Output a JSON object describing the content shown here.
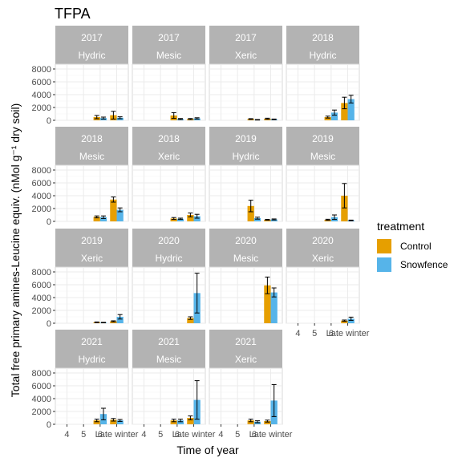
{
  "chart_data": {
    "type": "bar",
    "title": "TFPA",
    "xlabel": "Time of year",
    "ylabel": "Total free primary amines-Leucine equiv. (nMol g⁻¹ dry soil)",
    "categories": [
      "4",
      "5",
      "6",
      "Late winter"
    ],
    "ylim": [
      0,
      8000
    ],
    "yticks": [
      0,
      2000,
      4000,
      6000,
      8000
    ],
    "legend": {
      "title": "treatment",
      "position": "right",
      "entries": [
        {
          "name": "Control",
          "color": "#E69F00"
        },
        {
          "name": "Snowfence",
          "color": "#56B4E9"
        }
      ]
    },
    "panel_strip_color": "#B3B3B3",
    "panels": [
      {
        "year": "2017",
        "site": "Hydric",
        "control": [
          null,
          null,
          500,
          800
        ],
        "snowfence": [
          null,
          null,
          350,
          400
        ],
        "control_err": [
          null,
          null,
          250,
          600
        ],
        "snowfence_err": [
          null,
          null,
          150,
          150
        ],
        "show_xaxis": false
      },
      {
        "year": "2017",
        "site": "Mesic",
        "control": [
          null,
          null,
          750,
          200
        ],
        "snowfence": [
          null,
          null,
          200,
          300
        ],
        "control_err": [
          null,
          null,
          450,
          80
        ],
        "snowfence_err": [
          null,
          null,
          80,
          100
        ],
        "show_xaxis": false
      },
      {
        "year": "2017",
        "site": "Xeric",
        "control": [
          null,
          null,
          200,
          250
        ],
        "snowfence": [
          null,
          null,
          80,
          150
        ],
        "control_err": [
          null,
          null,
          60,
          80
        ],
        "snowfence_err": [
          null,
          null,
          40,
          50
        ],
        "show_xaxis": false
      },
      {
        "year": "2018",
        "site": "Hydric",
        "control": [
          null,
          null,
          500,
          2700
        ],
        "snowfence": [
          null,
          null,
          1200,
          3300
        ],
        "control_err": [
          null,
          null,
          150,
          900
        ],
        "snowfence_err": [
          null,
          null,
          400,
          600
        ],
        "show_xaxis": false
      },
      {
        "year": "2018",
        "site": "Mesic",
        "control": [
          null,
          null,
          700,
          3400
        ],
        "snowfence": [
          null,
          null,
          650,
          1800
        ],
        "control_err": [
          null,
          null,
          150,
          400
        ],
        "snowfence_err": [
          null,
          null,
          200,
          300
        ],
        "show_xaxis": false
      },
      {
        "year": "2018",
        "site": "Xeric",
        "control": [
          null,
          null,
          450,
          1000
        ],
        "snowfence": [
          null,
          null,
          400,
          800
        ],
        "control_err": [
          null,
          null,
          150,
          300
        ],
        "snowfence_err": [
          null,
          null,
          100,
          300
        ],
        "show_xaxis": false
      },
      {
        "year": "2019",
        "site": "Hydric",
        "control": [
          null,
          null,
          2400,
          250
        ],
        "snowfence": [
          null,
          null,
          500,
          300
        ],
        "control_err": [
          null,
          null,
          900,
          60
        ],
        "snowfence_err": [
          null,
          null,
          150,
          80
        ],
        "show_xaxis": false
      },
      {
        "year": "2019",
        "site": "Mesic",
        "control": [
          null,
          null,
          250,
          4000
        ],
        "snowfence": [
          null,
          null,
          650,
          150
        ],
        "control_err": [
          null,
          null,
          80,
          1900
        ],
        "snowfence_err": [
          null,
          null,
          350,
          50
        ],
        "show_xaxis": false
      },
      {
        "year": "2019",
        "site": "Xeric",
        "control": [
          null,
          null,
          150,
          300
        ],
        "snowfence": [
          null,
          null,
          100,
          1000
        ],
        "control_err": [
          null,
          null,
          50,
          80
        ],
        "snowfence_err": [
          null,
          null,
          40,
          350
        ],
        "show_xaxis": false
      },
      {
        "year": "2020",
        "site": "Hydric",
        "control": [
          null,
          null,
          null,
          800
        ],
        "snowfence": [
          null,
          null,
          null,
          4700
        ],
        "control_err": [
          null,
          null,
          null,
          200
        ],
        "snowfence_err": [
          null,
          null,
          null,
          3100
        ],
        "show_xaxis": false
      },
      {
        "year": "2020",
        "site": "Mesic",
        "control": [
          null,
          null,
          null,
          5900
        ],
        "snowfence": [
          null,
          null,
          null,
          4800
        ],
        "control_err": [
          null,
          null,
          null,
          1300
        ],
        "snowfence_err": [
          null,
          null,
          null,
          700
        ],
        "show_xaxis": false
      },
      {
        "year": "2020",
        "site": "Xeric",
        "control": [
          null,
          null,
          null,
          400
        ],
        "snowfence": [
          null,
          null,
          null,
          700
        ],
        "control_err": [
          null,
          null,
          null,
          100
        ],
        "snowfence_err": [
          null,
          null,
          null,
          250
        ],
        "show_xaxis": true
      },
      {
        "year": "2021",
        "site": "Hydric",
        "control": [
          null,
          null,
          600,
          700
        ],
        "snowfence": [
          null,
          null,
          1600,
          600
        ],
        "control_err": [
          null,
          null,
          200,
          200
        ],
        "snowfence_err": [
          null,
          null,
          900,
          150
        ],
        "show_xaxis": true
      },
      {
        "year": "2021",
        "site": "Mesic",
        "control": [
          null,
          null,
          600,
          1000
        ],
        "snowfence": [
          null,
          null,
          600,
          3800
        ],
        "control_err": [
          null,
          null,
          200,
          300
        ],
        "snowfence_err": [
          null,
          null,
          200,
          3000
        ],
        "show_xaxis": true
      },
      {
        "year": "2021",
        "site": "Xeric",
        "control": [
          null,
          null,
          600,
          500
        ],
        "snowfence": [
          null,
          null,
          400,
          3700
        ],
        "control_err": [
          null,
          null,
          200,
          150
        ],
        "snowfence_err": [
          null,
          null,
          150,
          2500
        ],
        "show_xaxis": true
      }
    ],
    "pair_extras": [
      {
        "panel": 0,
        "cat": 2,
        "control": 500,
        "snowfence": 350
      },
      {
        "panel": 12,
        "cat": 2,
        "control": 400,
        "snowfence": 300
      },
      {
        "panel": 13,
        "cat": 2,
        "control": 400,
        "snowfence": 400
      },
      {
        "panel": 14,
        "cat": 2,
        "control": 500,
        "snowfence": 500
      }
    ]
  }
}
